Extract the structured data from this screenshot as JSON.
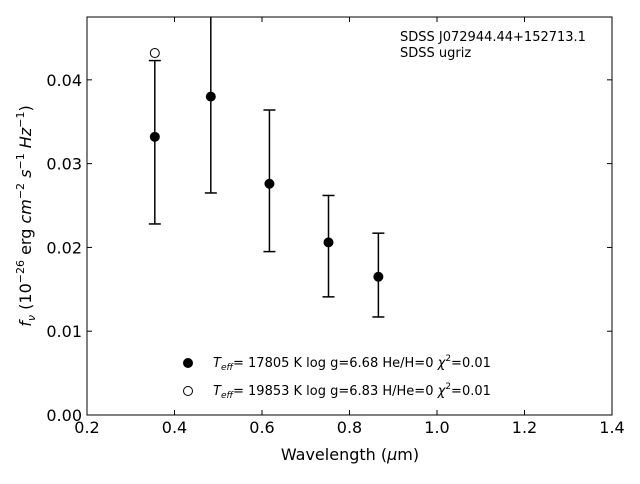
{
  "chart_data": {
    "type": "scatter",
    "xlabel": "Wavelength (μm)",
    "ylabel": "f_ν (10^-26 erg cm^-2 s^-1 Hz^-1)",
    "xlim": [
      0.2,
      1.4
    ],
    "ylim": [
      0.0,
      0.0475
    ],
    "x_ticks": [
      "0.2",
      "0.4",
      "0.6",
      "0.8",
      "1.0",
      "1.2",
      "1.4"
    ],
    "y_ticks": [
      "0.00",
      "0.01",
      "0.02",
      "0.03",
      "0.04"
    ],
    "grid": false,
    "annotations": [
      "SDSS J072944.44+152713.1",
      "SDSS ugriz"
    ],
    "legend_position": "bottom-center",
    "series": [
      {
        "name": "T_eff= 17805 K  log g=6.68  He/H=0  χ²=0.01",
        "marker": "filled-circle",
        "points": [
          {
            "x": 0.355,
            "y": 0.0332,
            "err_low": 0.0228,
            "err_high": 0.0423
          },
          {
            "x": 0.483,
            "y": 0.038,
            "err_low": 0.0265,
            "err_high": 0.0475
          },
          {
            "x": 0.617,
            "y": 0.0276,
            "err_low": 0.0195,
            "err_high": 0.0364
          },
          {
            "x": 0.752,
            "y": 0.0206,
            "err_low": 0.0141,
            "err_high": 0.0262
          },
          {
            "x": 0.866,
            "y": 0.0165,
            "err_low": 0.0117,
            "err_high": 0.0217
          }
        ]
      },
      {
        "name": "T_eff= 19853 K  log g=6.83  H/He=0  χ²=0.01",
        "marker": "open-circle",
        "points": [
          {
            "x": 0.355,
            "y": 0.0432
          }
        ]
      }
    ],
    "legend": [
      {
        "teff": "17805",
        "logg": "6.68",
        "comp": "He/H=0",
        "chi": "=0.01"
      },
      {
        "teff": "19853",
        "logg": "6.83",
        "comp": "H/He=0",
        "chi": "=0.01"
      }
    ]
  }
}
